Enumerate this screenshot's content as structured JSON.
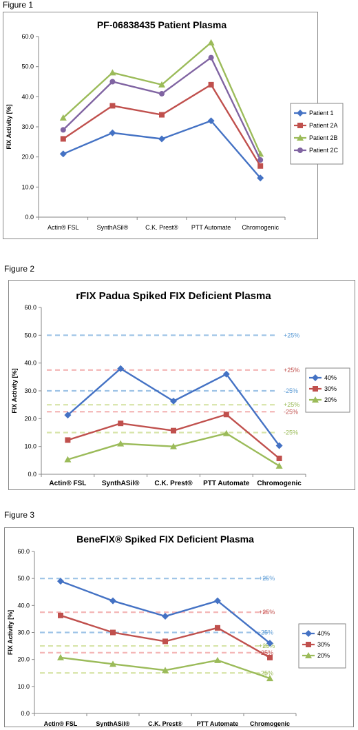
{
  "figures": [
    {
      "label": "Figure 1"
    },
    {
      "label": "Figure 2"
    },
    {
      "label": "Figure 3"
    }
  ],
  "chart_data": [
    {
      "type": "line",
      "title": "PF-06838435 Patient Plasma",
      "xlabel": "",
      "ylabel": "FIX Activity [%]",
      "ylim": [
        0,
        60
      ],
      "yticks": [
        "0.0",
        "10.0",
        "20.0",
        "30.0",
        "40.0",
        "50.0",
        "60.0"
      ],
      "categories": [
        "Actin® FSL",
        "SynthASil®",
        "C.K. Prest®",
        "PTT Automate",
        "Chromogenic"
      ],
      "grid": false,
      "legend_position": "right",
      "series": [
        {
          "name": "Patient 1",
          "color": "#4472C4",
          "marker": "diamond",
          "values": [
            21,
            28,
            26,
            32,
            13
          ]
        },
        {
          "name": "Patient 2A",
          "color": "#C0504D",
          "marker": "square",
          "values": [
            26,
            37,
            34,
            44,
            17
          ]
        },
        {
          "name": "Patient 2B",
          "color": "#9BBB59",
          "marker": "triangle",
          "values": [
            33,
            48,
            44,
            58,
            21
          ]
        },
        {
          "name": "Patient 2C",
          "color": "#8064A2",
          "marker": "circle",
          "values": [
            29,
            45,
            41,
            53,
            19
          ]
        }
      ],
      "reference_lines": []
    },
    {
      "type": "line",
      "title": "rFIX Padua Spiked FIX Deficient Plasma",
      "xlabel": "",
      "ylabel": "FIX Activity [%]",
      "ylim": [
        0,
        60
      ],
      "yticks": [
        "0.0",
        "10.0",
        "20.0",
        "30.0",
        "40.0",
        "50.0",
        "60.0"
      ],
      "categories": [
        "Actin® FSL",
        "SynthASil®",
        "C.K. Prest®",
        "PTT Automate",
        "Chromogenic"
      ],
      "grid": false,
      "legend_position": "right",
      "series": [
        {
          "name": "40%",
          "color": "#4472C4",
          "marker": "diamond",
          "values": [
            21.3,
            38.0,
            26.3,
            36.0,
            10.3
          ]
        },
        {
          "name": "30%",
          "color": "#C0504D",
          "marker": "square",
          "values": [
            12.3,
            18.3,
            15.7,
            21.5,
            5.7
          ]
        },
        {
          "name": "20%",
          "color": "#9BBB59",
          "marker": "triangle",
          "values": [
            5.3,
            11.0,
            10.0,
            14.7,
            3.0
          ]
        }
      ],
      "reference_lines": [
        {
          "y": 50,
          "label": "+25%",
          "color": "#9DC3E6",
          "label_color": "#5B9BD5"
        },
        {
          "y": 37.5,
          "label": "+25%",
          "color": "#F4B6B6",
          "label_color": "#C0504D"
        },
        {
          "y": 30,
          "label": "-25%",
          "color": "#9DC3E6",
          "label_color": "#5B9BD5"
        },
        {
          "y": 25,
          "label": "+25%",
          "color": "#D7E4A8",
          "label_color": "#9BBB59"
        },
        {
          "y": 22.5,
          "label": "-25%",
          "color": "#F4B6B6",
          "label_color": "#C0504D"
        },
        {
          "y": 15,
          "label": "-25%",
          "color": "#D7E4A8",
          "label_color": "#9BBB59"
        }
      ]
    },
    {
      "type": "line",
      "title": "BeneFIX® Spiked FIX Deficient Plasma",
      "xlabel": "",
      "ylabel": "FIX Activity [%]",
      "ylim": [
        0,
        60
      ],
      "yticks": [
        "0.0",
        "10.0",
        "20.0",
        "30.0",
        "40.0",
        "50.0",
        "60.0"
      ],
      "categories": [
        "Actin® FSL",
        "SynthASil®",
        "C.K. Prest®",
        "PTT Automate",
        "Chromogenic"
      ],
      "grid": false,
      "legend_position": "right",
      "series": [
        {
          "name": "40%",
          "color": "#4472C4",
          "marker": "diamond",
          "values": [
            49.0,
            41.7,
            36.0,
            41.7,
            26.0
          ]
        },
        {
          "name": "30%",
          "color": "#C0504D",
          "marker": "square",
          "values": [
            36.3,
            30.0,
            26.7,
            31.7,
            20.7
          ]
        },
        {
          "name": "20%",
          "color": "#9BBB59",
          "marker": "triangle",
          "values": [
            20.7,
            18.3,
            16.0,
            19.7,
            13.0
          ]
        }
      ],
      "reference_lines": [
        {
          "y": 50,
          "label": "+25%",
          "color": "#9DC3E6",
          "label_color": "#5B9BD5"
        },
        {
          "y": 37.5,
          "label": "+25%",
          "color": "#F4B6B6",
          "label_color": "#C0504D"
        },
        {
          "y": 30,
          "label": "-25%",
          "color": "#9DC3E6",
          "label_color": "#5B9BD5"
        },
        {
          "y": 25,
          "label": "+25%",
          "color": "#D7E4A8",
          "label_color": "#9BBB59"
        },
        {
          "y": 22.5,
          "label": "-25%",
          "color": "#F4B6B6",
          "label_color": "#C0504D"
        },
        {
          "y": 15,
          "label": "-25%",
          "color": "#D7E4A8",
          "label_color": "#9BBB59"
        }
      ]
    }
  ]
}
